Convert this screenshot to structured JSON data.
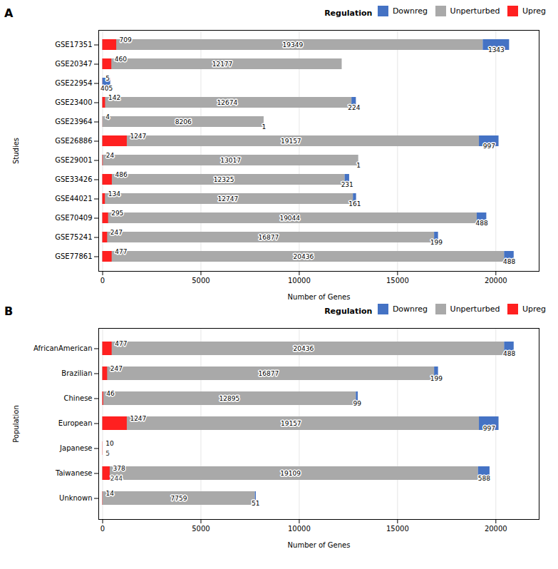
{
  "chart_data": [
    {
      "type": "bar",
      "orientation": "horizontal",
      "stacked": true,
      "title": "A",
      "xlabel": "Number of Genes",
      "ylabel": "Studies",
      "legend_title": "Regulation",
      "legend": "upper right",
      "categories": [
        "GSE77861",
        "GSE75241",
        "GSE70409",
        "GSE44021",
        "GSE33426",
        "GSE29001",
        "GSE26886",
        "GSE23964",
        "GSE23400",
        "GSE22954",
        "GSE20347",
        "GSE17351"
      ],
      "series": [
        {
          "name": "Downreg",
          "color": "#4472C4",
          "type": "stacked",
          "values": [
            488,
            199,
            488,
            161,
            231,
            1,
            997,
            1,
            224,
            405,
            0,
            1343
          ]
        },
        {
          "name": "Unperturbed",
          "color": "#A9A9A9",
          "type": "stacked",
          "values": [
            20436,
            16877,
            19044,
            12747,
            12325,
            13017,
            19157,
            8206,
            12674,
            0,
            12177,
            19349
          ]
        },
        {
          "name": "Upreg",
          "color": "#FF2020",
          "type": "overlay",
          "values": [
            477,
            247,
            295,
            134,
            486,
            24,
            1247,
            4,
            142,
            5,
            460,
            709
          ]
        }
      ],
      "xlim": [
        -200,
        22200
      ],
      "xticks": [
        0,
        5000,
        10000,
        15000,
        20000
      ],
      "grid": true,
      "data_labels": true
    },
    {
      "type": "bar",
      "orientation": "horizontal",
      "stacked": true,
      "title": "B",
      "xlabel": "Number of Genes",
      "ylabel": "Population",
      "legend_title": "Regulation",
      "legend": "upper right",
      "categories": [
        "Unknown",
        "Taiwanese",
        "Japanese",
        "European",
        "Chinese",
        "Brazilian",
        "AfricanAmerican"
      ],
      "series": [
        {
          "name": "Downreg",
          "color": "#4472C4",
          "type": "stacked",
          "values": [
            51,
            588,
            0,
            997,
            99,
            199,
            488
          ]
        },
        {
          "name": "Unperturbed",
          "color": "#A9A9A9",
          "type": "stacked",
          "values": [
            7759,
            19109,
            0,
            19157,
            12895,
            16877,
            20436
          ]
        },
        {
          "name": "Upreg",
          "color": "#FF2020",
          "type": "overlay",
          "values": [
            14,
            378,
            10,
            1247,
            46,
            247,
            477
          ]
        }
      ],
      "annotations": [
        {
          "category": "Taiwanese",
          "x": 244,
          "text": "244"
        },
        {
          "category": "Japanese",
          "x": 5,
          "text": "5"
        }
      ],
      "xlim": [
        -200,
        22200
      ],
      "xticks": [
        0,
        5000,
        10000,
        15000,
        20000
      ],
      "grid": true,
      "data_labels": true
    }
  ]
}
